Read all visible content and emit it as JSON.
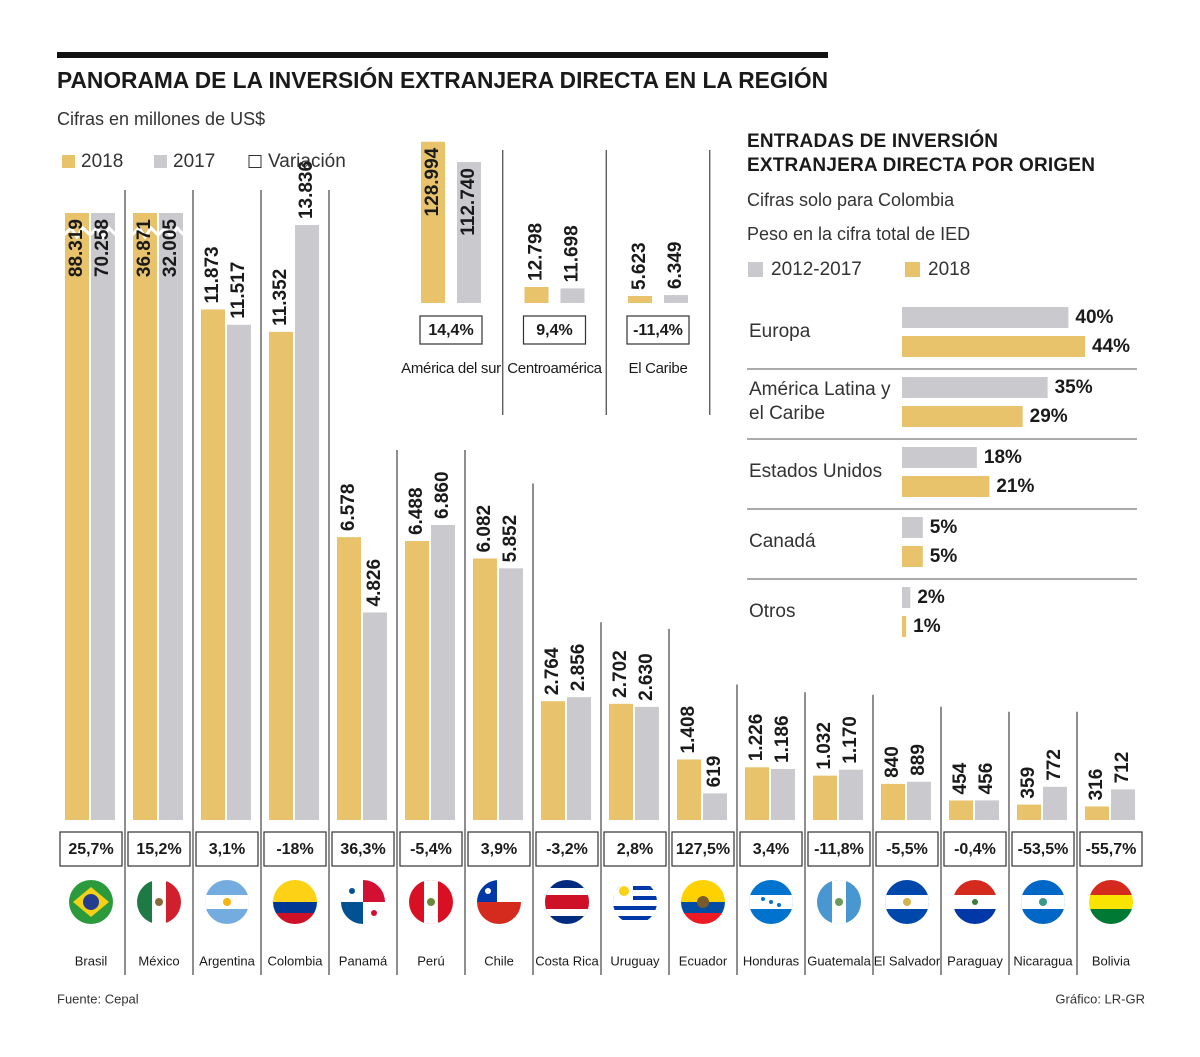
{
  "chart_data": [
    {
      "type": "bar",
      "title": "PANORAMA DE LA INVERSIÓN EXTRANJERA DIRECTA EN LA REGIÓN",
      "subtitle": "Cifras en millones de US$",
      "categories": [
        "Brasil",
        "México",
        "Argentina",
        "Colombia",
        "Panamá",
        "Perú",
        "Chile",
        "Costa Rica",
        "Uruguay",
        "Ecuador",
        "Honduras",
        "Guatemala",
        "El Salvador",
        "Paraguay",
        "Nicaragua",
        "Bolivia"
      ],
      "series": [
        {
          "name": "2018",
          "color": "#e8c36c",
          "values": [
            88319,
            36871,
            11873,
            11352,
            6578,
            6488,
            6082,
            2764,
            2702,
            1408,
            1226,
            1032,
            840,
            454,
            359,
            316
          ],
          "value_labels": [
            "88.319",
            "36.871",
            "11.873",
            "11.352",
            "6.578",
            "6.488",
            "6.082",
            "2.764",
            "2.702",
            "1.408",
            "1.226",
            "1.032",
            "840",
            "454",
            "359",
            "316"
          ]
        },
        {
          "name": "2017",
          "color": "#c9c9ce",
          "values": [
            70258,
            32005,
            11517,
            13836,
            4826,
            6860,
            5852,
            2856,
            2630,
            619,
            1186,
            1170,
            889,
            456,
            772,
            712
          ],
          "value_labels": [
            "70.258",
            "32.005",
            "11.517",
            "13.836",
            "4.826",
            "6.860",
            "5.852",
            "2.856",
            "2.630",
            "619",
            "1.186",
            "1.170",
            "889",
            "456",
            "772",
            "712"
          ]
        }
      ],
      "variation_name": "Variación",
      "variation": [
        25.7,
        15.2,
        3.1,
        -18,
        36.3,
        -5.4,
        3.9,
        -3.2,
        2.8,
        127.5,
        3.4,
        -11.8,
        -5.5,
        -0.4,
        -53.5,
        -55.7
      ],
      "variation_labels": [
        "25,7%",
        "15,2%",
        "3,1%",
        "-18%",
        "36,3%",
        "-5,4%",
        "3,9%",
        "-3,2%",
        "2,8%",
        "127,5%",
        "3,4%",
        "-11,8%",
        "-5,5%",
        "-0,4%",
        "-53,5%",
        "-55,7%"
      ]
    },
    {
      "type": "bar",
      "categories": [
        "América del sur",
        "Centroamérica",
        "El Caribe"
      ],
      "series": [
        {
          "color": "#e8c36c",
          "values": [
            128994,
            12798,
            5623
          ],
          "value_labels": [
            "128.994",
            "12.798",
            "5.623"
          ]
        },
        {
          "color": "#c9c9ce",
          "values": [
            112740,
            11698,
            6349
          ],
          "value_labels": [
            "112.740",
            "11.698",
            "6.349"
          ]
        }
      ],
      "variation": [
        14.4,
        9.4,
        -11.4
      ],
      "variation_labels": [
        "14,4%",
        "9,4%",
        "-11,4%"
      ]
    },
    {
      "type": "hbar",
      "title": "ENTRADAS DE INVERSIÓN EXTRANJERA DIRECTA POR ORIGEN",
      "subtitle": "Cifras solo para Colombia",
      "note": "Peso en la cifra total de IED",
      "categories": [
        "Europa",
        "América Latina y el Caribe",
        "Estados Unidos",
        "Canadá",
        "Otros"
      ],
      "series": [
        {
          "name": "2012-2017",
          "color": "#c9c9ce",
          "values": [
            40,
            35,
            18,
            5,
            2
          ],
          "value_labels": [
            "40%",
            "35%",
            "18%",
            "5%",
            "2%"
          ]
        },
        {
          "name": "2018",
          "color": "#e8c36c",
          "values": [
            44,
            29,
            21,
            5,
            1
          ],
          "value_labels": [
            "44%",
            "29%",
            "21%",
            "5%",
            "1%"
          ]
        }
      ]
    }
  ],
  "source": "Fuente: Cepal",
  "credit": "Gráfico: LR-GR"
}
